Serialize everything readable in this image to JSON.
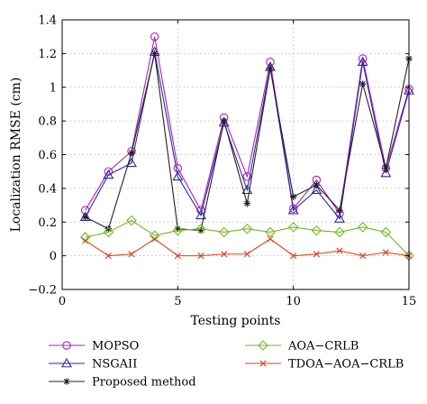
{
  "chart_data": {
    "type": "line",
    "title": "",
    "xlabel": "Testing points",
    "ylabel": "Localization RMSE (cm)",
    "xlim": [
      0,
      15
    ],
    "ylim": [
      -0.2,
      1.4
    ],
    "x_ticks": [
      "0",
      "5",
      "10",
      "15"
    ],
    "x_tick_values": [
      0,
      5,
      10,
      15
    ],
    "y_ticks": [
      "−0.2",
      "0",
      "0.2",
      "0.4",
      "0.6",
      "0.8",
      "1",
      "1.2",
      "1.4"
    ],
    "y_tick_values": [
      -0.2,
      0,
      0.2,
      0.4,
      0.6,
      0.8,
      1,
      1.2,
      1.4
    ],
    "grid": true,
    "legend_position": "bottom",
    "x": [
      1,
      2,
      3,
      4,
      5,
      6,
      7,
      8,
      9,
      10,
      11,
      12,
      13,
      14,
      15
    ],
    "series": [
      {
        "name": "MOPSO",
        "color": "#b41eb4",
        "marker": "circle",
        "values": [
          0.27,
          0.5,
          0.62,
          1.3,
          0.52,
          0.27,
          0.82,
          0.47,
          1.15,
          0.28,
          0.45,
          0.25,
          1.17,
          0.52,
          0.99
        ]
      },
      {
        "name": "NSGAII",
        "color": "#2a2aa8",
        "marker": "triangle",
        "values": [
          0.23,
          0.48,
          0.55,
          1.21,
          0.47,
          0.24,
          0.79,
          0.39,
          1.12,
          0.27,
          0.39,
          0.22,
          1.15,
          0.49,
          0.98
        ]
      },
      {
        "name": "Proposed method",
        "color": "#222222",
        "marker": "asterisk",
        "values": [
          0.23,
          0.16,
          0.61,
          1.2,
          0.16,
          0.15,
          0.8,
          0.31,
          1.11,
          0.35,
          0.42,
          0.27,
          1.02,
          0.52,
          1.17
        ]
      },
      {
        "name": "AOA−CRLB",
        "color": "#72b81f",
        "marker": "diamond",
        "values": [
          0.11,
          0.14,
          0.21,
          0.12,
          0.15,
          0.16,
          0.14,
          0.16,
          0.14,
          0.17,
          0.15,
          0.14,
          0.17,
          0.14,
          0.0
        ]
      },
      {
        "name": "TDOA−AOA−CRLB",
        "color": "#e0401a",
        "marker": "x",
        "values": [
          0.09,
          0.0,
          0.01,
          0.1,
          0.0,
          0.0,
          0.01,
          0.01,
          0.1,
          0.0,
          0.01,
          0.03,
          0.0,
          0.02,
          0.0
        ]
      }
    ]
  }
}
